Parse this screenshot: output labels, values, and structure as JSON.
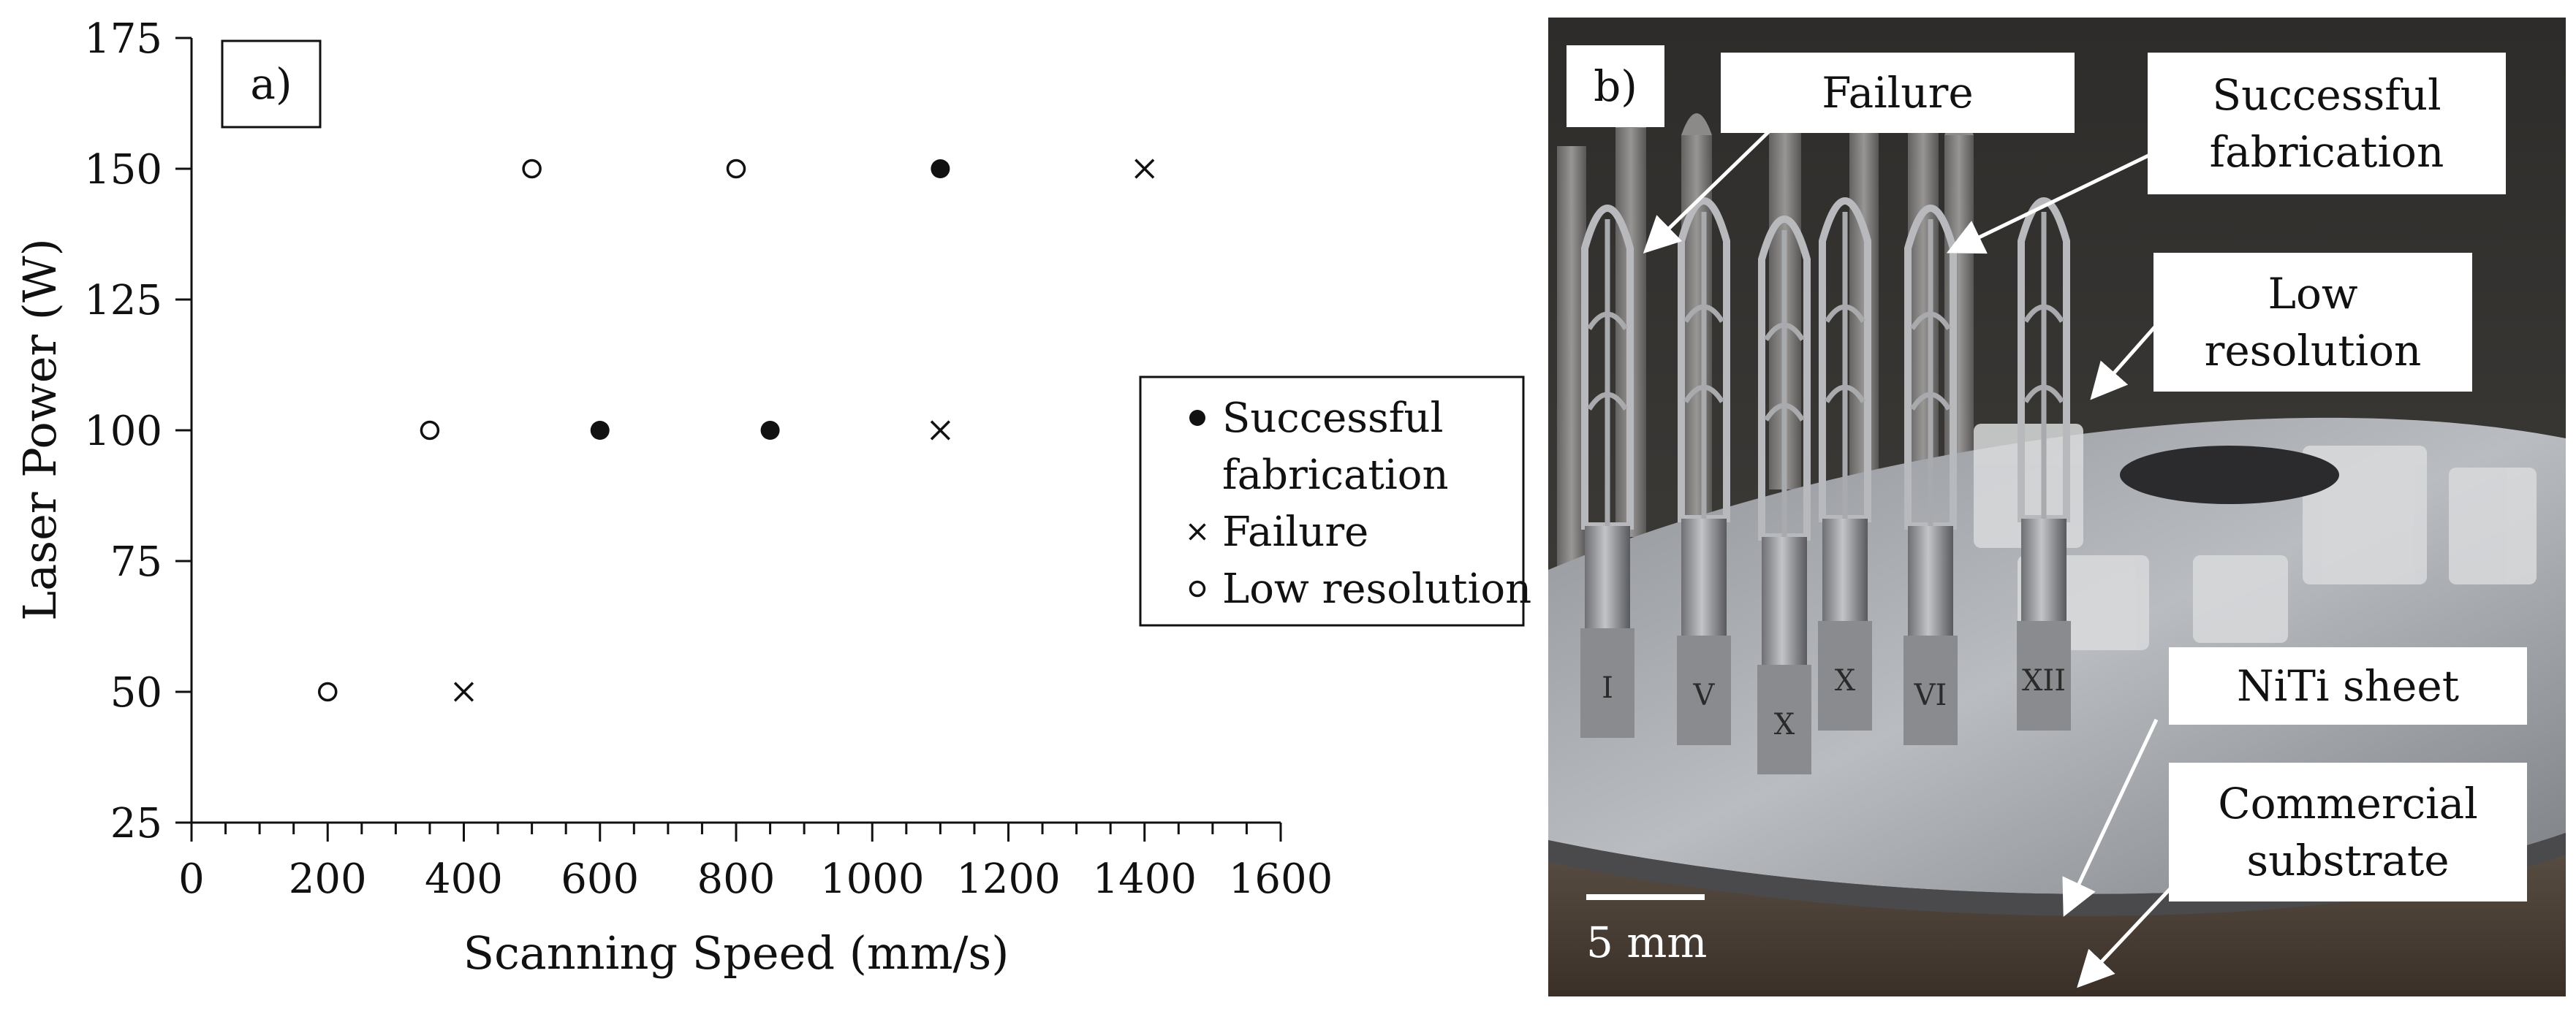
{
  "chart_data": {
    "type": "scatter",
    "panel_label": "a)",
    "xlabel": "Scanning Speed (mm/s)",
    "ylabel": "Laser Power (W)",
    "xlim": [
      0,
      1600
    ],
    "ylim": [
      25,
      175
    ],
    "xticks": [
      0,
      200,
      400,
      600,
      800,
      1000,
      1200,
      1400,
      1600
    ],
    "yticks": [
      25,
      50,
      75,
      100,
      125,
      150,
      175
    ],
    "grid": false,
    "legend_placement": "right",
    "series": [
      {
        "name": "Successful fabrication",
        "legend_lines": [
          "Successful",
          "fabrication"
        ],
        "marker": "filled-circle",
        "points": [
          {
            "x": 1100,
            "y": 150
          },
          {
            "x": 600,
            "y": 100
          },
          {
            "x": 850,
            "y": 100
          }
        ]
      },
      {
        "name": "Failure",
        "legend_lines": [
          "Failure"
        ],
        "marker": "cross",
        "points": [
          {
            "x": 1400,
            "y": 150
          },
          {
            "x": 1100,
            "y": 100
          },
          {
            "x": 400,
            "y": 50
          }
        ]
      },
      {
        "name": "Low resolution",
        "legend_lines": [
          "Low resolution"
        ],
        "marker": "open-circle",
        "points": [
          {
            "x": 500,
            "y": 150
          },
          {
            "x": 800,
            "y": 150
          },
          {
            "x": 350,
            "y": 100
          },
          {
            "x": 200,
            "y": 50
          }
        ]
      }
    ]
  },
  "photo": {
    "panel_label": "b)",
    "labels": {
      "failure": "Failure",
      "successful": "Successful\nfabrication",
      "low_resolution": "Low\nresolution",
      "niti_sheet": "NiTi sheet",
      "commercial_substrate": "Commercial\nsubstrate"
    },
    "scale_bar": "5 mm",
    "specimen_numerals": [
      "I",
      "V",
      "X",
      "X",
      "VI",
      "XII"
    ]
  }
}
